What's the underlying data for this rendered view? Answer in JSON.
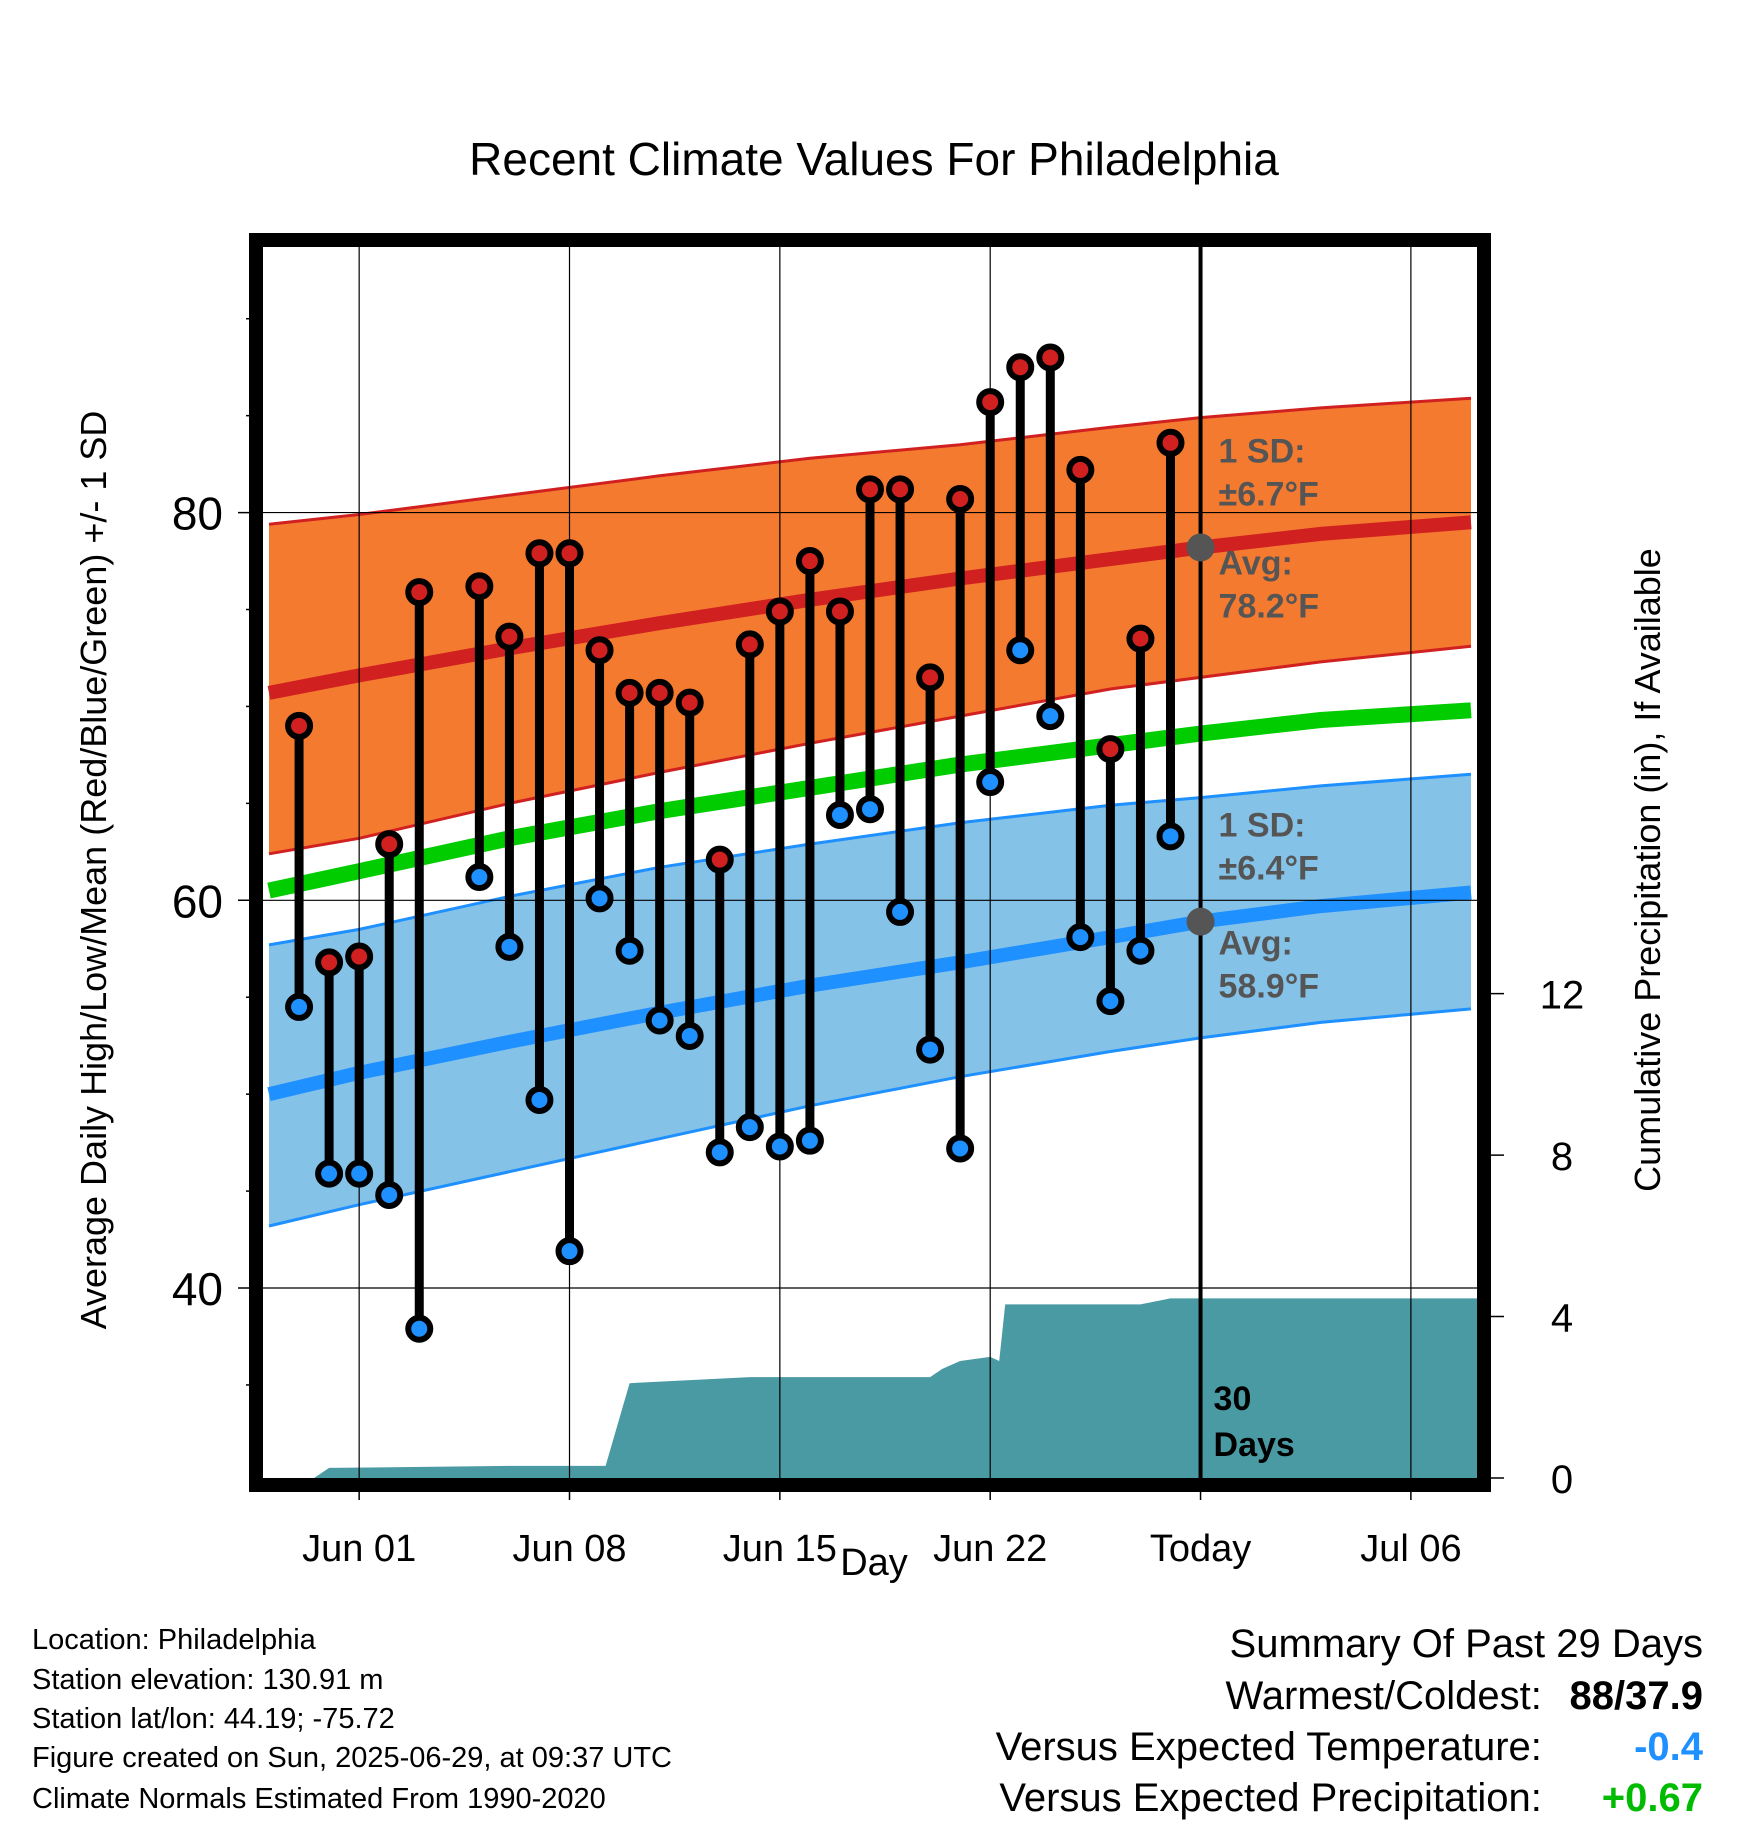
{
  "chart_data": {
    "type": "line",
    "title": "Recent Climate Values For Philadelphia",
    "xlabel": "Day",
    "ylabel_left": "Average Daily High/Low/Mean (Red/Blue/Green) +/- 1 SD",
    "ylabel_right": "Cumulative Precipitation (in), If Available",
    "xticks": [
      "Jun 01",
      "Jun 08",
      "Jun 15",
      "Jun 22",
      "Today",
      "Jul 06"
    ],
    "yticks_left": [
      "40",
      "60",
      "80"
    ],
    "yticks_right": [
      "0",
      "4",
      "8",
      "12"
    ],
    "ylim_left": [
      30.2,
      93.7
    ],
    "ylim_right": [
      0,
      30.5
    ],
    "xlim": [
      -3.2,
      37.2
    ],
    "grid": true,
    "colors": {
      "high": "#d02020",
      "high_band": "#f47a30",
      "low": "#1e90ff",
      "low_band": "#85c2e8",
      "mean": "#00cc00",
      "precip": "#4a9aa3",
      "annotation": "#555555"
    },
    "today_marker": {
      "day": 28,
      "label_line1": "30",
      "label_line2": "Days"
    },
    "normals": {
      "x": [
        -3.0,
        0,
        5,
        10,
        15,
        20,
        25,
        28,
        32,
        37
      ],
      "high_avg": [
        70.7,
        71.6,
        73.0,
        74.3,
        75.5,
        76.6,
        77.6,
        78.2,
        78.9,
        79.5
      ],
      "high_upper": [
        79.4,
        79.9,
        80.9,
        81.9,
        82.8,
        83.5,
        84.4,
        84.9,
        85.4,
        85.9
      ],
      "high_lower": [
        62.4,
        63.2,
        65.0,
        66.6,
        68.1,
        69.5,
        70.9,
        71.5,
        72.3,
        73.1
      ],
      "mean_avg": [
        60.5,
        61.5,
        63.2,
        64.6,
        65.8,
        67.0,
        68.0,
        68.6,
        69.3,
        69.8
      ],
      "low_avg": [
        50.0,
        51.1,
        52.7,
        54.2,
        55.6,
        56.8,
        58.1,
        58.9,
        59.7,
        60.4
      ],
      "low_upper": [
        57.7,
        58.5,
        60.2,
        61.7,
        62.9,
        64.0,
        64.9,
        65.3,
        65.9,
        66.5
      ],
      "low_lower": [
        43.2,
        44.3,
        46.0,
        47.7,
        49.4,
        50.9,
        52.2,
        52.9,
        53.7,
        54.4
      ]
    },
    "daily": {
      "day": [
        -2,
        -1,
        0,
        1,
        2,
        4,
        5,
        6,
        7,
        8,
        9,
        10,
        11,
        12,
        13,
        14,
        15,
        16,
        17,
        18,
        19,
        20,
        21,
        22,
        23,
        24,
        25,
        26,
        27
      ],
      "high": [
        69.0,
        56.8,
        57.1,
        62.9,
        75.9,
        76.2,
        73.6,
        77.9,
        77.9,
        72.9,
        70.7,
        70.7,
        70.2,
        62.1,
        73.2,
        74.9,
        77.5,
        74.9,
        81.2,
        81.2,
        71.5,
        80.7,
        85.7,
        87.5,
        88.0,
        82.2,
        67.8,
        73.5,
        83.6
      ],
      "low": [
        54.5,
        45.9,
        45.9,
        44.8,
        37.9,
        61.2,
        57.6,
        49.7,
        41.9,
        60.1,
        57.4,
        53.8,
        53.0,
        47.0,
        48.3,
        47.3,
        47.6,
        64.4,
        64.7,
        59.4,
        52.3,
        47.2,
        66.1,
        72.9,
        69.5,
        58.1,
        54.8,
        57.4,
        63.3
      ]
    },
    "precip": {
      "x": [
        -3.2,
        -1.5,
        -1.0,
        5.0,
        7.0,
        7.2,
        7.3,
        8.0,
        8.2,
        9.0,
        13.0,
        17.5,
        19.0,
        19.4,
        20.0,
        21.0,
        21.3,
        21.5,
        24.0,
        25.0,
        26.0,
        27.0,
        28.0,
        37.2
      ],
      "values": [
        0.0,
        0.0,
        0.25,
        0.3,
        0.3,
        0.3,
        0.3,
        0.3,
        0.3,
        2.35,
        2.5,
        2.5,
        2.5,
        2.7,
        2.9,
        3.0,
        2.9,
        4.3,
        4.3,
        4.3,
        4.3,
        4.45,
        4.45,
        4.45
      ]
    },
    "annotations": {
      "high_sd_label": "1 SD:",
      "high_sd_value": "±6.7°F",
      "high_avg_label": "Avg:",
      "high_avg_value": "78.2°F",
      "low_sd_label": "1 SD:",
      "low_sd_value": "±6.4°F",
      "low_avg_label": "Avg:",
      "low_avg_value": "58.9°F"
    }
  },
  "info": {
    "location": "Location: Philadelphia",
    "elevation": "Station elevation: 130.91 m",
    "latlon": "Station lat/lon: 44.19; -75.72",
    "created": "Figure created on Sun, 2025-06-29, at 09:37 UTC",
    "normals": "Climate Normals Estimated From 1990-2020"
  },
  "summary": {
    "title": "Summary Of Past 29 Days",
    "warm_cold_label": "Warmest/Coldest:",
    "warm_cold_value": "88/37.9",
    "temp_label": "Versus Expected Temperature:",
    "temp_value": "-0.4",
    "temp_color": "#1e90ff",
    "precip_label": "Versus Expected Precipitation:",
    "precip_value": "+0.67",
    "precip_color": "#00bb00"
  }
}
